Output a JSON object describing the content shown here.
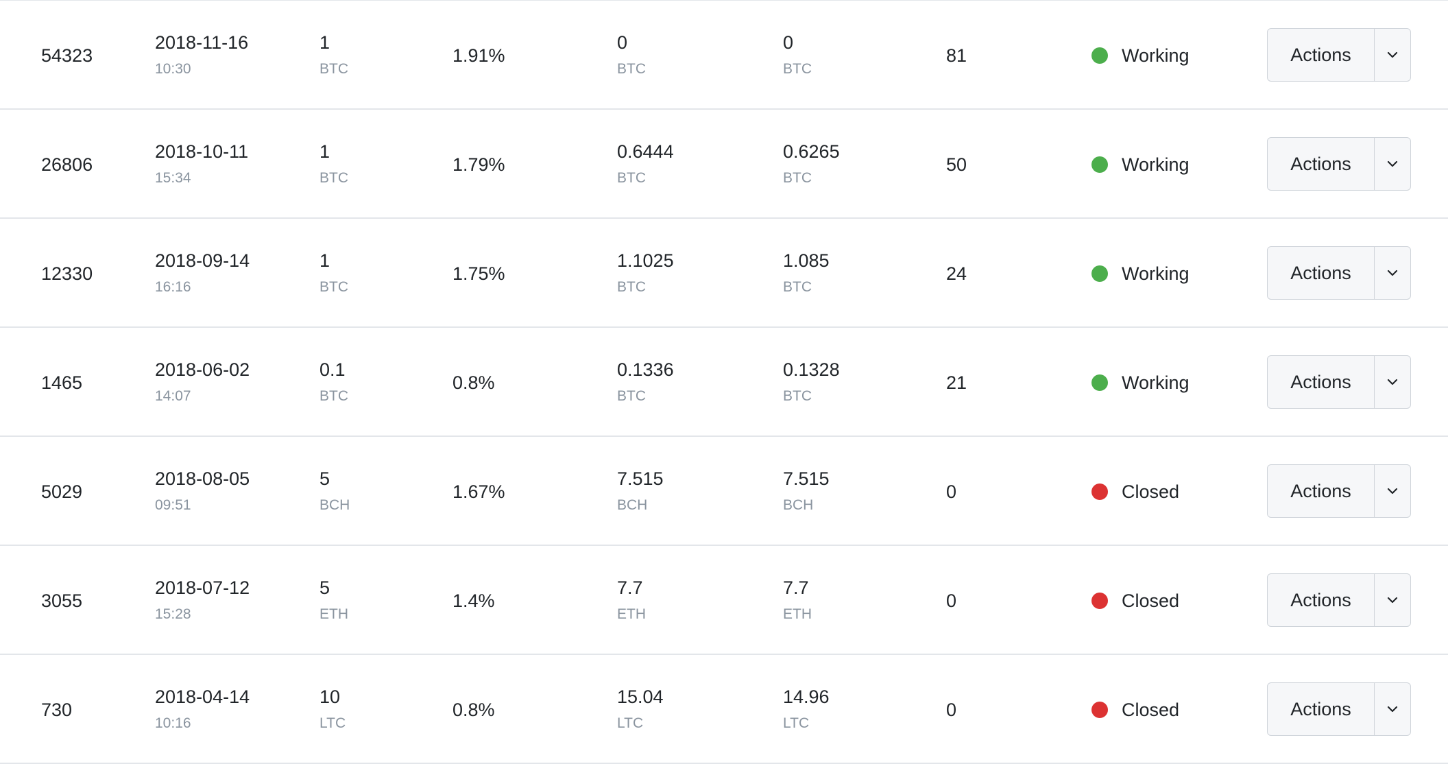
{
  "colors": {
    "working": "#4cae4c",
    "closed": "#dc3232"
  },
  "icons": {
    "caret": "chevron-down-icon",
    "status": "status-dot-icon"
  },
  "rows": [
    {
      "id": "54323",
      "date": "2018-11-16",
      "time": "10:30",
      "amount": "1",
      "amount_unit": "BTC",
      "rate": "1.91%",
      "value1": "0",
      "value1_unit": "BTC",
      "value2": "0",
      "value2_unit": "BTC",
      "count": "81",
      "status": "Working",
      "status_key": "working",
      "action_label": "Actions"
    },
    {
      "id": "26806",
      "date": "2018-10-11",
      "time": "15:34",
      "amount": "1",
      "amount_unit": "BTC",
      "rate": "1.79%",
      "value1": "0.6444",
      "value1_unit": "BTC",
      "value2": "0.6265",
      "value2_unit": "BTC",
      "count": "50",
      "status": "Working",
      "status_key": "working",
      "action_label": "Actions"
    },
    {
      "id": "12330",
      "date": "2018-09-14",
      "time": "16:16",
      "amount": "1",
      "amount_unit": "BTC",
      "rate": "1.75%",
      "value1": "1.1025",
      "value1_unit": "BTC",
      "value2": "1.085",
      "value2_unit": "BTC",
      "count": "24",
      "status": "Working",
      "status_key": "working",
      "action_label": "Actions"
    },
    {
      "id": "1465",
      "date": "2018-06-02",
      "time": "14:07",
      "amount": "0.1",
      "amount_unit": "BTC",
      "rate": "0.8%",
      "value1": "0.1336",
      "value1_unit": "BTC",
      "value2": "0.1328",
      "value2_unit": "BTC",
      "count": "21",
      "status": "Working",
      "status_key": "working",
      "action_label": "Actions"
    },
    {
      "id": "5029",
      "date": "2018-08-05",
      "time": "09:51",
      "amount": "5",
      "amount_unit": "BCH",
      "rate": "1.67%",
      "value1": "7.515",
      "value1_unit": "BCH",
      "value2": "7.515",
      "value2_unit": "BCH",
      "count": "0",
      "status": "Closed",
      "status_key": "closed",
      "action_label": "Actions"
    },
    {
      "id": "3055",
      "date": "2018-07-12",
      "time": "15:28",
      "amount": "5",
      "amount_unit": "ETH",
      "rate": "1.4%",
      "value1": "7.7",
      "value1_unit": "ETH",
      "value2": "7.7",
      "value2_unit": "ETH",
      "count": "0",
      "status": "Closed",
      "status_key": "closed",
      "action_label": "Actions"
    },
    {
      "id": "730",
      "date": "2018-04-14",
      "time": "10:16",
      "amount": "10",
      "amount_unit": "LTC",
      "rate": "0.8%",
      "value1": "15.04",
      "value1_unit": "LTC",
      "value2": "14.96",
      "value2_unit": "LTC",
      "count": "0",
      "status": "Closed",
      "status_key": "closed",
      "action_label": "Actions"
    }
  ]
}
